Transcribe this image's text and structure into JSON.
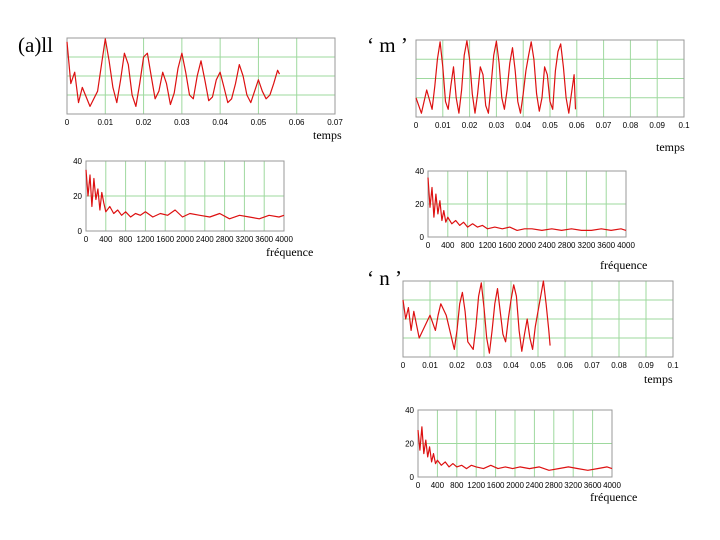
{
  "labels": {
    "ll": "(a)ll",
    "m": "‘ m ’",
    "n": "‘ n ’",
    "temps": "temps",
    "frequence": "fréquence"
  },
  "colors": {
    "signal": "#dd1111",
    "grid": "#9ed99e",
    "frame": "#999999"
  },
  "chart_data": [
    {
      "id": "ll-time",
      "type": "line",
      "title": "(a)ll",
      "xlabel": "temps",
      "ylabel": "",
      "xlim": [
        0,
        0.07
      ],
      "ylim": [
        -1,
        1
      ],
      "xticks": [
        0,
        0.01,
        0.02,
        0.03,
        0.04,
        0.05,
        0.06,
        0.07
      ],
      "xtick_labels": [
        "0",
        "0.01",
        "0.02",
        "0.03",
        "0.04",
        "0.05",
        "0.06",
        "0.07"
      ],
      "yticks": [],
      "ytick_labels": [],
      "series": [
        {
          "name": "signal",
          "x": [
            0,
            0.001,
            0.002,
            0.003,
            0.004,
            0.006,
            0.008,
            0.009,
            0.01,
            0.011,
            0.012,
            0.013,
            0.014,
            0.015,
            0.016,
            0.017,
            0.018,
            0.019,
            0.02,
            0.021,
            0.022,
            0.023,
            0.024,
            0.025,
            0.026,
            0.027,
            0.028,
            0.029,
            0.03,
            0.031,
            0.032,
            0.033,
            0.034,
            0.035,
            0.036,
            0.037,
            0.038,
            0.039,
            0.04,
            0.041,
            0.042,
            0.043,
            0.044,
            0.045,
            0.046,
            0.047,
            0.048,
            0.049,
            0.05,
            0.051,
            0.052,
            0.053,
            0.054,
            0.055,
            0.0555
          ],
          "y": [
            0.9,
            -0.2,
            0.1,
            -0.7,
            -0.3,
            -0.8,
            -0.4,
            0.3,
            0.98,
            0.4,
            -0.3,
            -0.7,
            -0.1,
            0.6,
            0.3,
            -0.5,
            -0.8,
            -0.2,
            0.5,
            0.6,
            0.0,
            -0.6,
            -0.4,
            0.1,
            -0.2,
            -0.75,
            -0.45,
            0.2,
            0.6,
            0.1,
            -0.5,
            -0.6,
            0.0,
            0.4,
            -0.1,
            -0.65,
            -0.55,
            -0.1,
            0.1,
            -0.3,
            -0.7,
            -0.6,
            -0.2,
            0.3,
            0.0,
            -0.5,
            -0.7,
            -0.4,
            -0.1,
            -0.4,
            -0.6,
            -0.5,
            -0.2,
            0.15,
            0.05
          ]
        }
      ]
    },
    {
      "id": "ll-freq",
      "type": "line",
      "title": "",
      "xlabel": "fréquence",
      "ylabel": "",
      "xlim": [
        0,
        4000
      ],
      "ylim": [
        0,
        40
      ],
      "xticks": [
        0,
        400,
        800,
        1200,
        1600,
        2000,
        2400,
        2800,
        3200,
        3600,
        4000
      ],
      "xtick_labels": [
        "0",
        "400",
        "800",
        "1200",
        "1600",
        "2000",
        "2400",
        "2800",
        "3200",
        "3600",
        "4000"
      ],
      "yticks": [
        0,
        20,
        40
      ],
      "ytick_labels": [
        "0",
        "20",
        "40"
      ],
      "series": [
        {
          "name": "spectre",
          "x": [
            0,
            40,
            80,
            120,
            160,
            200,
            240,
            280,
            320,
            360,
            400,
            480,
            560,
            640,
            720,
            800,
            900,
            1000,
            1100,
            1200,
            1350,
            1500,
            1650,
            1800,
            1950,
            2100,
            2300,
            2500,
            2700,
            2900,
            3100,
            3300,
            3500,
            3700,
            3900,
            4000
          ],
          "y": [
            35,
            20,
            32,
            14,
            30,
            18,
            24,
            12,
            22,
            16,
            11,
            14,
            10,
            12,
            9,
            11,
            8,
            10,
            9,
            11,
            8,
            10,
            9,
            12,
            8,
            10,
            9,
            8,
            10,
            7,
            9,
            8,
            7,
            9,
            8,
            9
          ]
        }
      ]
    },
    {
      "id": "m-time",
      "type": "line",
      "title": "‘ m ’",
      "xlabel": "temps",
      "ylabel": "",
      "xlim": [
        0,
        0.1
      ],
      "ylim": [
        -1,
        1
      ],
      "xticks": [
        0,
        0.01,
        0.02,
        0.03,
        0.04,
        0.05,
        0.06,
        0.07,
        0.08,
        0.09,
        0.1
      ],
      "xtick_labels": [
        "0",
        "0.01",
        "0.02",
        "0.03",
        "0.04",
        "0.05",
        "0.06",
        "0.07",
        "0.08",
        "0.09",
        "0.1"
      ],
      "yticks": [],
      "ytick_labels": [],
      "series": [
        {
          "name": "signal",
          "x": [
            0,
            0.002,
            0.004,
            0.006,
            0.007,
            0.008,
            0.009,
            0.01,
            0.011,
            0.012,
            0.013,
            0.014,
            0.015,
            0.016,
            0.017,
            0.018,
            0.019,
            0.02,
            0.021,
            0.022,
            0.023,
            0.024,
            0.025,
            0.026,
            0.027,
            0.028,
            0.029,
            0.03,
            0.031,
            0.032,
            0.033,
            0.034,
            0.035,
            0.036,
            0.037,
            0.038,
            0.039,
            0.04,
            0.041,
            0.042,
            0.043,
            0.044,
            0.045,
            0.046,
            0.047,
            0.048,
            0.049,
            0.05,
            0.051,
            0.052,
            0.053,
            0.054,
            0.055,
            0.056,
            0.057,
            0.058,
            0.059,
            0.0595
          ],
          "y": [
            -0.5,
            -0.9,
            -0.3,
            -0.8,
            -0.2,
            0.5,
            0.95,
            0.3,
            -0.6,
            -0.8,
            -0.2,
            0.3,
            -0.5,
            -0.9,
            -0.3,
            0.6,
            0.98,
            0.5,
            -0.4,
            -0.9,
            -0.4,
            0.3,
            0.1,
            -0.7,
            -0.9,
            -0.2,
            0.6,
            0.97,
            0.4,
            -0.5,
            -0.8,
            -0.3,
            0.4,
            0.8,
            0.2,
            -0.6,
            -0.9,
            -0.4,
            0.2,
            0.6,
            0.95,
            0.5,
            -0.4,
            -0.85,
            -0.5,
            0.3,
            0.1,
            -0.6,
            -0.8,
            0.2,
            0.7,
            0.9,
            0.3,
            -0.5,
            -0.9,
            -0.4,
            0.1,
            -0.8
          ]
        }
      ]
    },
    {
      "id": "m-freq",
      "type": "line",
      "title": "",
      "xlabel": "fréquence",
      "ylabel": "",
      "xlim": [
        0,
        4000
      ],
      "ylim": [
        0,
        40
      ],
      "xticks": [
        0,
        400,
        800,
        1200,
        1600,
        2000,
        2400,
        2800,
        3200,
        3600,
        4000
      ],
      "xtick_labels": [
        "0",
        "400",
        "800",
        "1200",
        "1600",
        "2000",
        "2400",
        "2800",
        "3200",
        "3600",
        "4000"
      ],
      "yticks": [
        0,
        20,
        40
      ],
      "ytick_labels": [
        "0",
        "20",
        "40"
      ],
      "series": [
        {
          "name": "spectre",
          "x": [
            0,
            40,
            80,
            120,
            160,
            200,
            240,
            280,
            320,
            360,
            400,
            480,
            560,
            640,
            720,
            800,
            900,
            1000,
            1100,
            1200,
            1350,
            1500,
            1650,
            1800,
            1950,
            2100,
            2300,
            2500,
            2700,
            2900,
            3100,
            3300,
            3500,
            3700,
            3900,
            4000
          ],
          "y": [
            36,
            18,
            30,
            12,
            26,
            14,
            22,
            10,
            16,
            9,
            12,
            8,
            10,
            7,
            9,
            6,
            8,
            6,
            7,
            5,
            6,
            5,
            6,
            4,
            5,
            5,
            4,
            5,
            4,
            5,
            4,
            4,
            5,
            4,
            5,
            4
          ]
        }
      ]
    },
    {
      "id": "n-time",
      "type": "line",
      "title": "‘ n ’",
      "xlabel": "temps",
      "ylabel": "",
      "xlim": [
        0,
        0.1
      ],
      "ylim": [
        -1,
        1
      ],
      "xticks": [
        0,
        0.01,
        0.02,
        0.03,
        0.04,
        0.05,
        0.06,
        0.07,
        0.08,
        0.09,
        0.1
      ],
      "xtick_labels": [
        "0",
        "0.01",
        "0.02",
        "0.03",
        "0.04",
        "0.05",
        "0.06",
        "0.07",
        "0.08",
        "0.09",
        "0.1"
      ],
      "yticks": [],
      "ytick_labels": [],
      "series": [
        {
          "name": "signal",
          "x": [
            0,
            0.001,
            0.002,
            0.003,
            0.004,
            0.006,
            0.008,
            0.01,
            0.012,
            0.013,
            0.014,
            0.016,
            0.018,
            0.019,
            0.02,
            0.021,
            0.022,
            0.023,
            0.024,
            0.026,
            0.027,
            0.028,
            0.029,
            0.03,
            0.031,
            0.032,
            0.033,
            0.034,
            0.035,
            0.036,
            0.037,
            0.038,
            0.039,
            0.04,
            0.041,
            0.042,
            0.043,
            0.044,
            0.045,
            0.046,
            0.047,
            0.048,
            0.049,
            0.05,
            0.051,
            0.052,
            0.053,
            0.054,
            0.0545
          ],
          "y": [
            0.5,
            0.0,
            0.3,
            -0.3,
            0.2,
            -0.5,
            -0.2,
            0.1,
            -0.3,
            0.1,
            0.4,
            0.1,
            -0.5,
            -0.8,
            -0.3,
            0.4,
            0.7,
            0.2,
            -0.6,
            -0.8,
            -0.2,
            0.6,
            0.95,
            0.3,
            -0.5,
            -0.9,
            -0.3,
            0.4,
            0.8,
            0.2,
            -0.4,
            -0.6,
            0.0,
            0.5,
            0.9,
            0.6,
            -0.3,
            -0.85,
            -0.4,
            0.0,
            -0.5,
            -0.8,
            -0.2,
            0.2,
            0.6,
            1.0,
            0.4,
            -0.3,
            -0.7
          ]
        }
      ]
    },
    {
      "id": "n-freq",
      "type": "line",
      "title": "",
      "xlabel": "fréquence",
      "ylabel": "",
      "xlim": [
        0,
        4000
      ],
      "ylim": [
        0,
        40
      ],
      "xticks": [
        0,
        400,
        800,
        1200,
        1600,
        2000,
        2400,
        2800,
        3200,
        3600,
        4000
      ],
      "xtick_labels": [
        "0",
        "400",
        "800",
        "1200",
        "1600",
        "2000",
        "2400",
        "2800",
        "3200",
        "3600",
        "4000"
      ],
      "yticks": [
        0,
        20,
        40
      ],
      "ytick_labels": [
        "0",
        "20",
        "40"
      ],
      "series": [
        {
          "name": "spectre",
          "x": [
            0,
            40,
            80,
            120,
            160,
            200,
            240,
            280,
            320,
            360,
            400,
            480,
            560,
            640,
            720,
            800,
            900,
            1000,
            1100,
            1200,
            1350,
            1500,
            1650,
            1800,
            1950,
            2100,
            2300,
            2500,
            2700,
            2900,
            3100,
            3300,
            3500,
            3700,
            3900,
            4000
          ],
          "y": [
            28,
            16,
            30,
            14,
            22,
            12,
            18,
            9,
            14,
            8,
            10,
            7,
            9,
            6,
            8,
            6,
            7,
            5,
            7,
            6,
            5,
            7,
            5,
            6,
            5,
            6,
            5,
            6,
            4,
            5,
            6,
            5,
            4,
            5,
            6,
            5
          ]
        }
      ]
    }
  ]
}
